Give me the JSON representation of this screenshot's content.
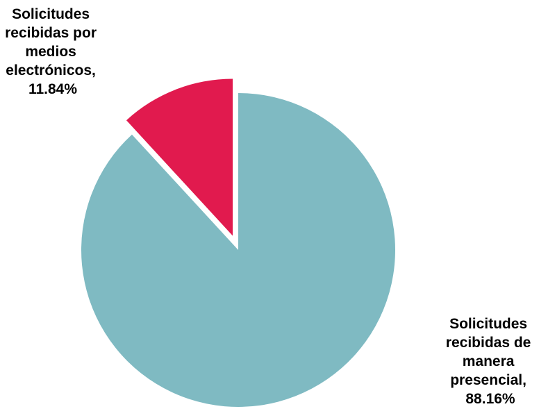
{
  "chart_data": {
    "type": "pie",
    "slices": [
      {
        "label_lines": [
          "Solicitudes",
          "recibidas de",
          "manera",
          "presencial,",
          "88.16%"
        ],
        "value": 88.16,
        "color": "#7fbac2",
        "exploded": false
      },
      {
        "label_lines": [
          "Solicitudes",
          "recibidas por",
          "medios",
          "electrónicos,",
          "11.84%"
        ],
        "value": 11.84,
        "color": "#e11a4e",
        "exploded": true
      }
    ],
    "start": "12 o'clock",
    "direction": "clockwise",
    "legend": "none"
  }
}
